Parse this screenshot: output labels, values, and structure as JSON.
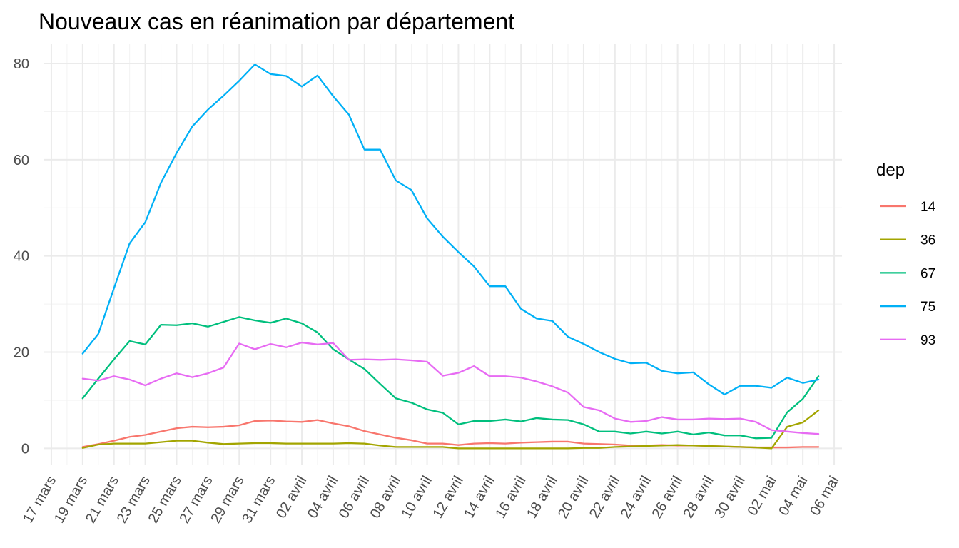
{
  "chart_data": {
    "type": "line",
    "title": "Nouveaux cas en réanimation par département",
    "xlabel": "",
    "ylabel": "",
    "ylim": [
      -3.5,
      84
    ],
    "y_ticks": [
      0,
      20,
      40,
      60,
      80
    ],
    "x_tick_labels": [
      "17 mars",
      "19 mars",
      "21 mars",
      "23 mars",
      "25 mars",
      "27 mars",
      "29 mars",
      "31 mars",
      "02 avril",
      "04 avril",
      "06 avril",
      "08 avril",
      "10 avril",
      "12 avril",
      "14 avril",
      "16 avril",
      "18 avril",
      "20 avril",
      "22 avril",
      "24 avril",
      "26 avril",
      "28 avril",
      "30 avril",
      "02 mai",
      "04 mai",
      "06 mai"
    ],
    "x_tick_day_index": [
      0,
      2,
      4,
      6,
      8,
      10,
      12,
      14,
      16,
      18,
      20,
      22,
      24,
      26,
      28,
      30,
      32,
      34,
      36,
      38,
      40,
      42,
      44,
      46,
      48,
      50
    ],
    "x_day_index_range": [
      -0.5,
      50.5
    ],
    "first_data_day_index": 2,
    "grid": true,
    "legend": {
      "title": "dep",
      "position": "right"
    },
    "series": [
      {
        "name": "14",
        "color": "#F8766D",
        "values": [
          0.3,
          0.9,
          1.6,
          2.4,
          2.8,
          3.5,
          4.2,
          4.5,
          4.4,
          4.5,
          4.8,
          5.7,
          5.8,
          5.6,
          5.5,
          5.9,
          5.2,
          4.6,
          3.6,
          2.9,
          2.2,
          1.7,
          1.0,
          1.0,
          0.7,
          1.0,
          1.1,
          1.0,
          1.2,
          1.3,
          1.4,
          1.4,
          1.0,
          0.9,
          0.8,
          0.6,
          0.6,
          0.7,
          0.6,
          0.6,
          0.5,
          0.4,
          0.3,
          0.2,
          0.2,
          0.2,
          0.3,
          0.3
        ]
      },
      {
        "name": "36",
        "color": "#A3A500",
        "values": [
          0.1,
          0.8,
          1.0,
          1.0,
          1.0,
          1.3,
          1.6,
          1.6,
          1.2,
          0.9,
          1.0,
          1.1,
          1.1,
          1.0,
          1.0,
          1.0,
          1.0,
          1.1,
          1.0,
          0.6,
          0.3,
          0.3,
          0.3,
          0.3,
          0.0,
          0.0,
          0.0,
          0.0,
          0.0,
          0.0,
          0.0,
          0.0,
          0.1,
          0.1,
          0.3,
          0.4,
          0.5,
          0.6,
          0.7,
          0.6,
          0.5,
          0.4,
          0.3,
          0.2,
          0.0,
          4.5,
          5.4,
          7.9
        ]
      },
      {
        "name": "67",
        "color": "#00BF7D",
        "values": [
          10.4,
          14.5,
          18.5,
          22.3,
          21.6,
          25.7,
          25.6,
          26.0,
          25.3,
          26.3,
          27.3,
          26.6,
          26.1,
          27.0,
          26.0,
          24.1,
          20.6,
          18.5,
          16.5,
          13.4,
          10.4,
          9.5,
          8.1,
          7.4,
          5.0,
          5.7,
          5.7,
          6.0,
          5.6,
          6.3,
          6.0,
          5.9,
          5.0,
          3.5,
          3.5,
          3.1,
          3.5,
          3.1,
          3.5,
          2.9,
          3.3,
          2.7,
          2.7,
          2.1,
          2.2,
          7.5,
          10.3,
          15.0
        ]
      },
      {
        "name": "75",
        "color": "#00B0F6",
        "values": [
          19.7,
          23.8,
          33.3,
          42.6,
          47.0,
          55.2,
          61.4,
          66.9,
          70.4,
          73.3,
          76.4,
          79.8,
          77.8,
          77.4,
          75.2,
          77.5,
          73.2,
          69.4,
          62.1,
          62.1,
          55.7,
          53.7,
          47.8,
          44.0,
          40.8,
          37.8,
          33.7,
          33.7,
          29.0,
          27.0,
          26.5,
          23.2,
          21.7,
          20.0,
          18.6,
          17.7,
          17.8,
          16.1,
          15.6,
          15.8,
          13.3,
          11.2,
          13.0,
          13.0,
          12.6,
          14.7,
          13.6,
          14.3
        ]
      },
      {
        "name": "93",
        "color": "#E76BF3",
        "values": [
          14.5,
          14.1,
          15.0,
          14.3,
          13.1,
          14.5,
          15.6,
          14.8,
          15.6,
          16.8,
          21.8,
          20.6,
          21.7,
          21.0,
          22.0,
          21.6,
          21.9,
          18.4,
          18.5,
          18.4,
          18.5,
          18.3,
          18.0,
          15.1,
          15.7,
          17.1,
          15.0,
          15.0,
          14.7,
          13.9,
          12.9,
          11.6,
          8.6,
          7.9,
          6.2,
          5.5,
          5.7,
          6.5,
          6.0,
          6.0,
          6.2,
          6.1,
          6.2,
          5.5,
          3.8,
          3.5,
          3.2,
          3.0
        ]
      }
    ]
  }
}
